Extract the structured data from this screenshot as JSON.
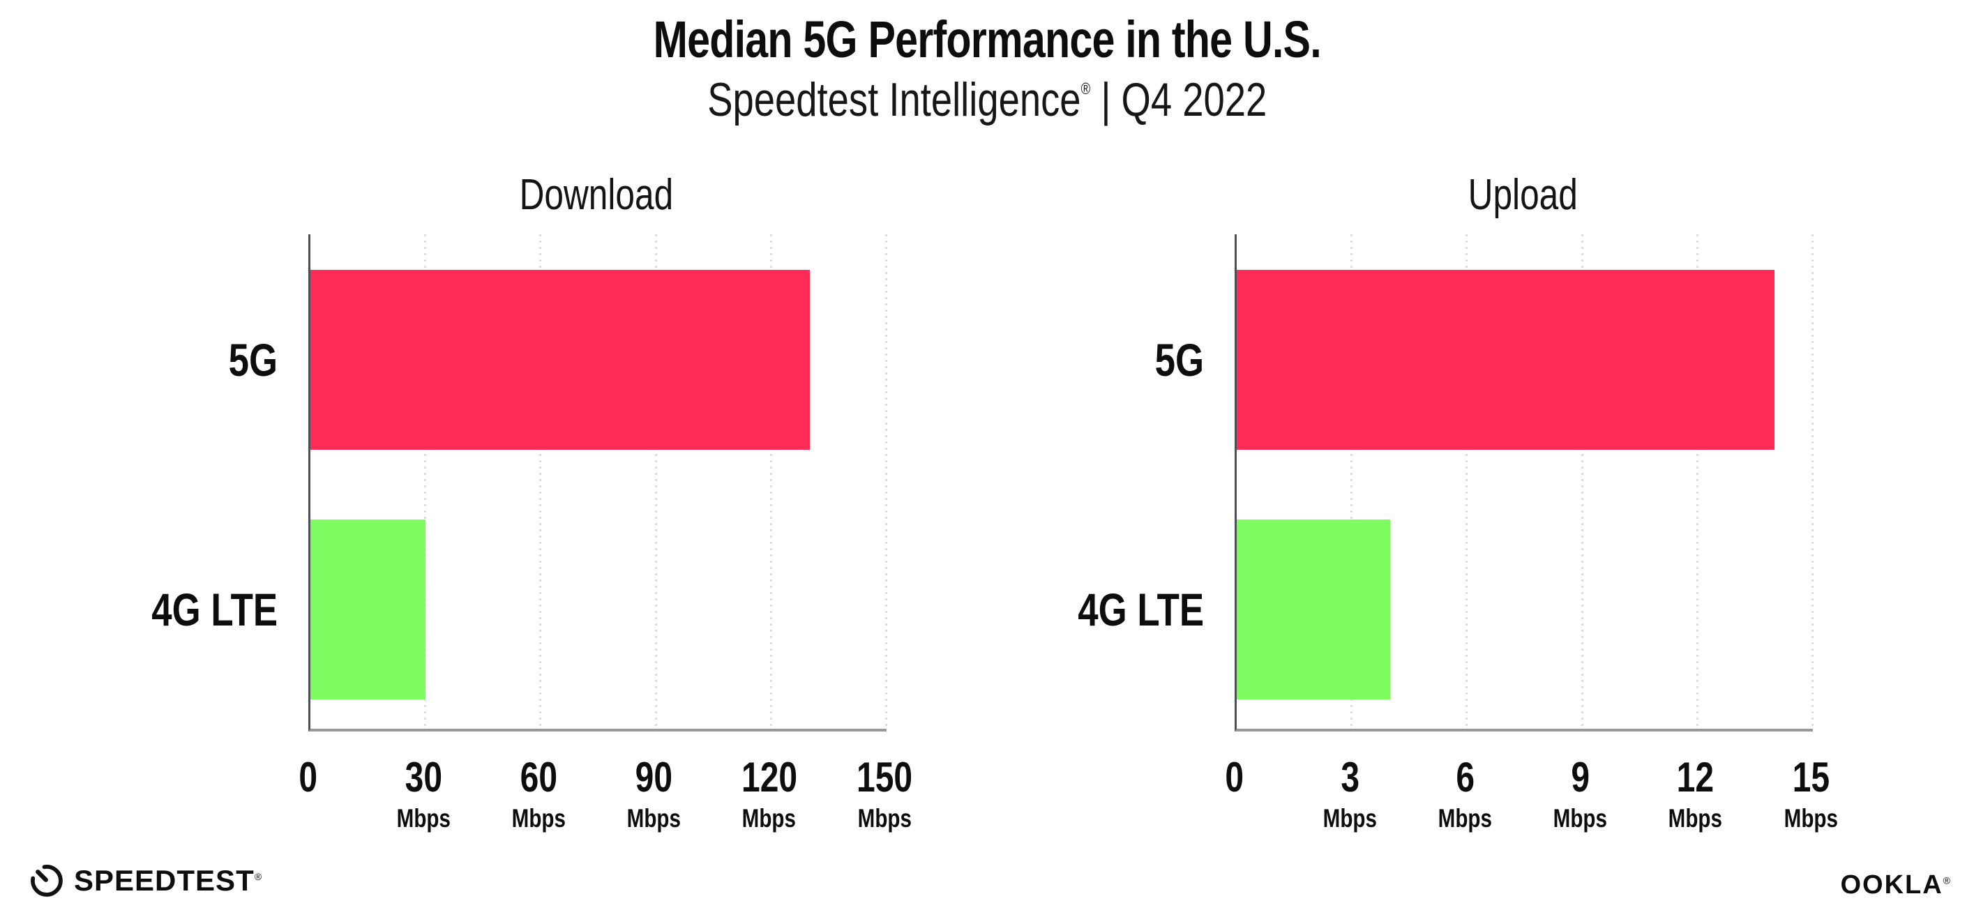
{
  "header": {
    "title": "Median 5G Performance in the U.S.",
    "subtitle": {
      "brand": "Speedtest Intelligence",
      "registered": "®",
      "rest": " | Q4 2022"
    }
  },
  "chart_data": [
    {
      "type": "bar",
      "orientation": "horizontal",
      "title": "Download",
      "categories": [
        "5G",
        "4G LTE"
      ],
      "values": [
        130,
        30
      ],
      "unit": "Mbps",
      "xlim": [
        0,
        150
      ],
      "xticks": [
        0,
        30,
        60,
        90,
        120,
        150
      ],
      "bar_colors": [
        "#ff2d55",
        "#7ffb62"
      ],
      "grid": "dotted vertical gridlines",
      "legend": "none"
    },
    {
      "type": "bar",
      "orientation": "horizontal",
      "title": "Upload",
      "categories": [
        "5G",
        "4G LTE"
      ],
      "values": [
        14,
        4
      ],
      "unit": "Mbps",
      "xlim": [
        0,
        15
      ],
      "xticks": [
        0,
        3,
        6,
        9,
        12,
        15
      ],
      "bar_colors": [
        "#ff2d55",
        "#7ffb62"
      ],
      "grid": "dotted vertical gridlines",
      "legend": "none"
    }
  ],
  "footer": {
    "speedtest_label": "SPEEDTEST",
    "speedtest_registered": "®",
    "ookla_label": "OOKLA",
    "ookla_registered": "®"
  },
  "colors": {
    "bar_5g": "#ff2d55",
    "bar_4g_lte": "#7ffb62",
    "gridline": "#dbdbe7",
    "axis": "#97979c",
    "text": "#0d0d0d"
  }
}
